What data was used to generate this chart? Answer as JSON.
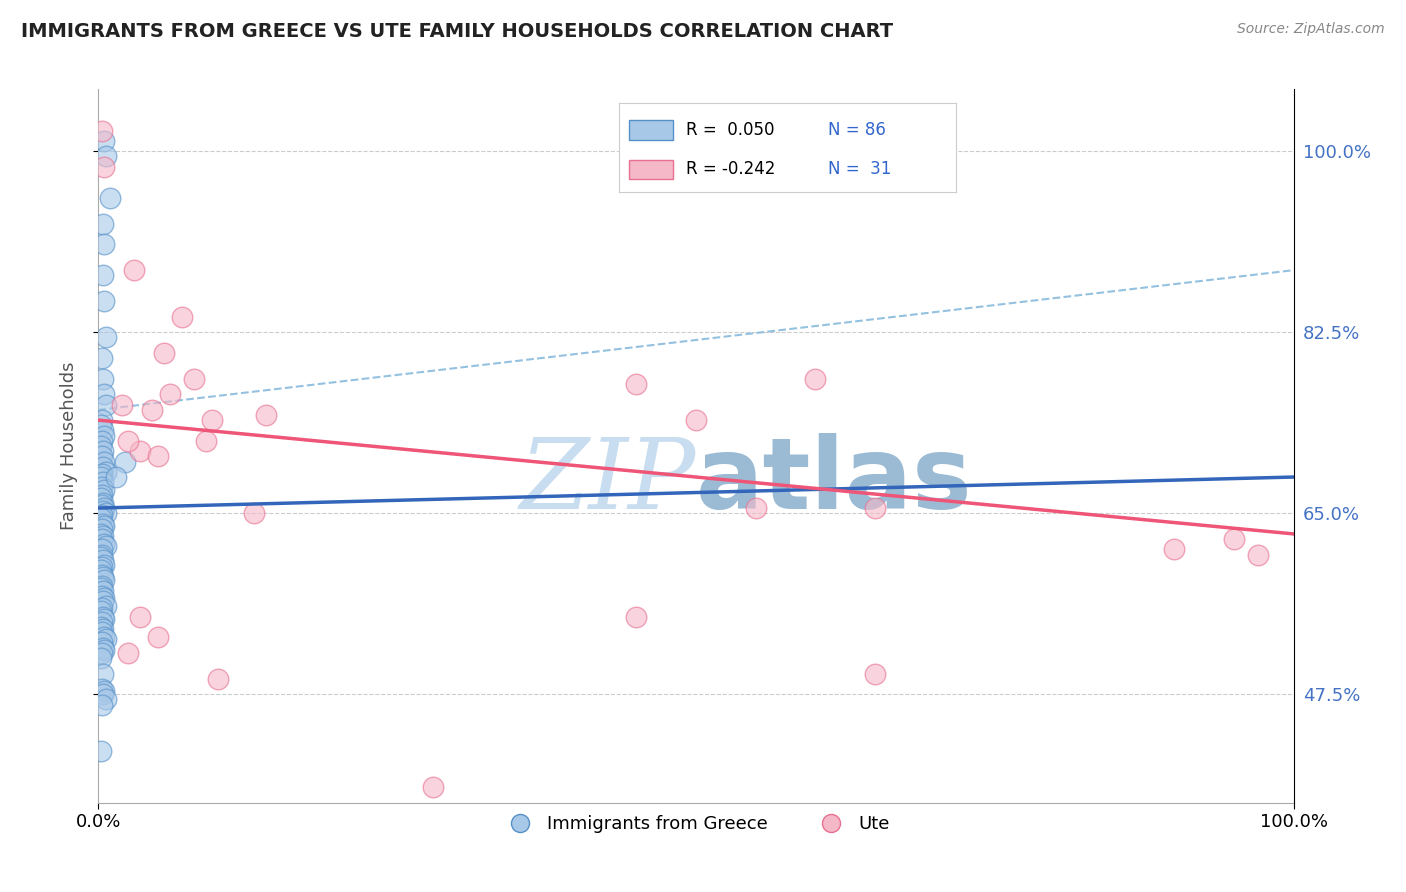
{
  "title": "IMMIGRANTS FROM GREECE VS UTE FAMILY HOUSEHOLDS CORRELATION CHART",
  "source_text": "Source: ZipAtlas.com",
  "ylabel": "Family Households",
  "legend_r_blue": "R =  0.050",
  "legend_n_blue": "N = 86",
  "legend_r_pink": "R = -0.242",
  "legend_n_pink": "N =  31",
  "legend_label_blue": "Immigrants from Greece",
  "legend_label_pink": "Ute",
  "xlim": [
    0.0,
    100.0
  ],
  "ylim": [
    37.0,
    106.0
  ],
  "yticks": [
    47.5,
    65.0,
    82.5,
    100.0
  ],
  "ytick_labels": [
    "47.5%",
    "65.0%",
    "82.5%",
    "100.0%"
  ],
  "xtick_labels": [
    "0.0%",
    "100.0%"
  ],
  "blue_fill": "#a8c8e8",
  "blue_edge": "#5590c8",
  "pink_fill": "#f5b8c8",
  "pink_edge": "#e87090",
  "blue_line_color": "#3366bb",
  "pink_line_color": "#ee5577",
  "dash_line_color": "#88bbdd",
  "watermark_color": "#c8ddf0",
  "title_color": "#222222",
  "blue_scatter_x": [
    0.5,
    0.6,
    1.0,
    0.4,
    0.5,
    0.4,
    0.5,
    0.6,
    0.3,
    0.4,
    0.5,
    0.6,
    0.3,
    0.2,
    0.4,
    0.5,
    0.3,
    0.2,
    0.4,
    0.3,
    0.5,
    0.4,
    0.6,
    0.3,
    0.2,
    0.4,
    0.3,
    0.5,
    0.3,
    0.2,
    0.4,
    0.3,
    0.5,
    0.4,
    0.6,
    0.3,
    0.2,
    0.4,
    0.5,
    0.3,
    0.2,
    0.4,
    0.3,
    0.5,
    0.6,
    0.3,
    2.2,
    1.5,
    0.3,
    0.2,
    0.4,
    0.5,
    0.3,
    0.2,
    0.3,
    0.4,
    0.5,
    0.3,
    0.2,
    0.4,
    0.3,
    0.5,
    0.4,
    0.6,
    0.3,
    0.2,
    0.4,
    0.5,
    0.3,
    0.2,
    0.4,
    0.3,
    0.5,
    0.6,
    0.3,
    0.4,
    0.5,
    0.3,
    0.2,
    0.4,
    0.3,
    0.5,
    0.4,
    0.6,
    0.3,
    0.2
  ],
  "blue_scatter_y": [
    101.0,
    99.5,
    95.5,
    93.0,
    91.0,
    88.0,
    85.5,
    82.0,
    80.0,
    78.0,
    76.5,
    75.5,
    74.0,
    73.5,
    73.0,
    72.5,
    72.0,
    71.5,
    71.0,
    70.5,
    70.0,
    69.5,
    69.0,
    68.8,
    68.5,
    68.0,
    67.5,
    67.2,
    66.8,
    66.5,
    66.0,
    65.8,
    65.5,
    65.2,
    65.0,
    64.8,
    64.5,
    64.0,
    63.8,
    63.5,
    63.0,
    62.8,
    62.5,
    62.0,
    61.8,
    61.5,
    70.0,
    68.5,
    61.0,
    60.8,
    60.5,
    60.0,
    59.8,
    59.5,
    59.0,
    58.8,
    58.5,
    58.0,
    57.8,
    57.5,
    57.0,
    56.8,
    56.5,
    56.0,
    55.8,
    55.5,
    55.0,
    54.8,
    54.5,
    54.0,
    53.8,
    53.5,
    53.0,
    52.8,
    52.5,
    52.0,
    51.8,
    51.5,
    51.0,
    49.5,
    48.0,
    47.8,
    47.5,
    47.0,
    46.5,
    42.0
  ],
  "pink_scatter_x": [
    0.3,
    0.5,
    3.0,
    7.0,
    5.5,
    8.0,
    6.0,
    14.0,
    9.5,
    9.0,
    3.5,
    5.0,
    4.5,
    2.5,
    2.0,
    13.0,
    45.0,
    50.0,
    55.0,
    60.0,
    65.0,
    90.0,
    95.0,
    97.0,
    3.5,
    5.0,
    2.5,
    10.0,
    28.0,
    65.0,
    45.0
  ],
  "pink_scatter_y": [
    102.0,
    98.5,
    88.5,
    84.0,
    80.5,
    78.0,
    76.5,
    74.5,
    74.0,
    72.0,
    71.0,
    70.5,
    75.0,
    72.0,
    75.5,
    65.0,
    77.5,
    74.0,
    65.5,
    78.0,
    65.5,
    61.5,
    62.5,
    61.0,
    55.0,
    53.0,
    51.5,
    49.0,
    38.5,
    49.5,
    55.0
  ],
  "blue_trend_x0": 0.0,
  "blue_trend_y0": 65.5,
  "blue_trend_x1": 100.0,
  "blue_trend_y1": 68.5,
  "pink_trend_x0": 0.0,
  "pink_trend_y0": 74.0,
  "pink_trend_x1": 100.0,
  "pink_trend_y1": 63.0,
  "dash_x0": 0.0,
  "dash_y0": 75.0,
  "dash_x1": 100.0,
  "dash_y1": 88.5
}
